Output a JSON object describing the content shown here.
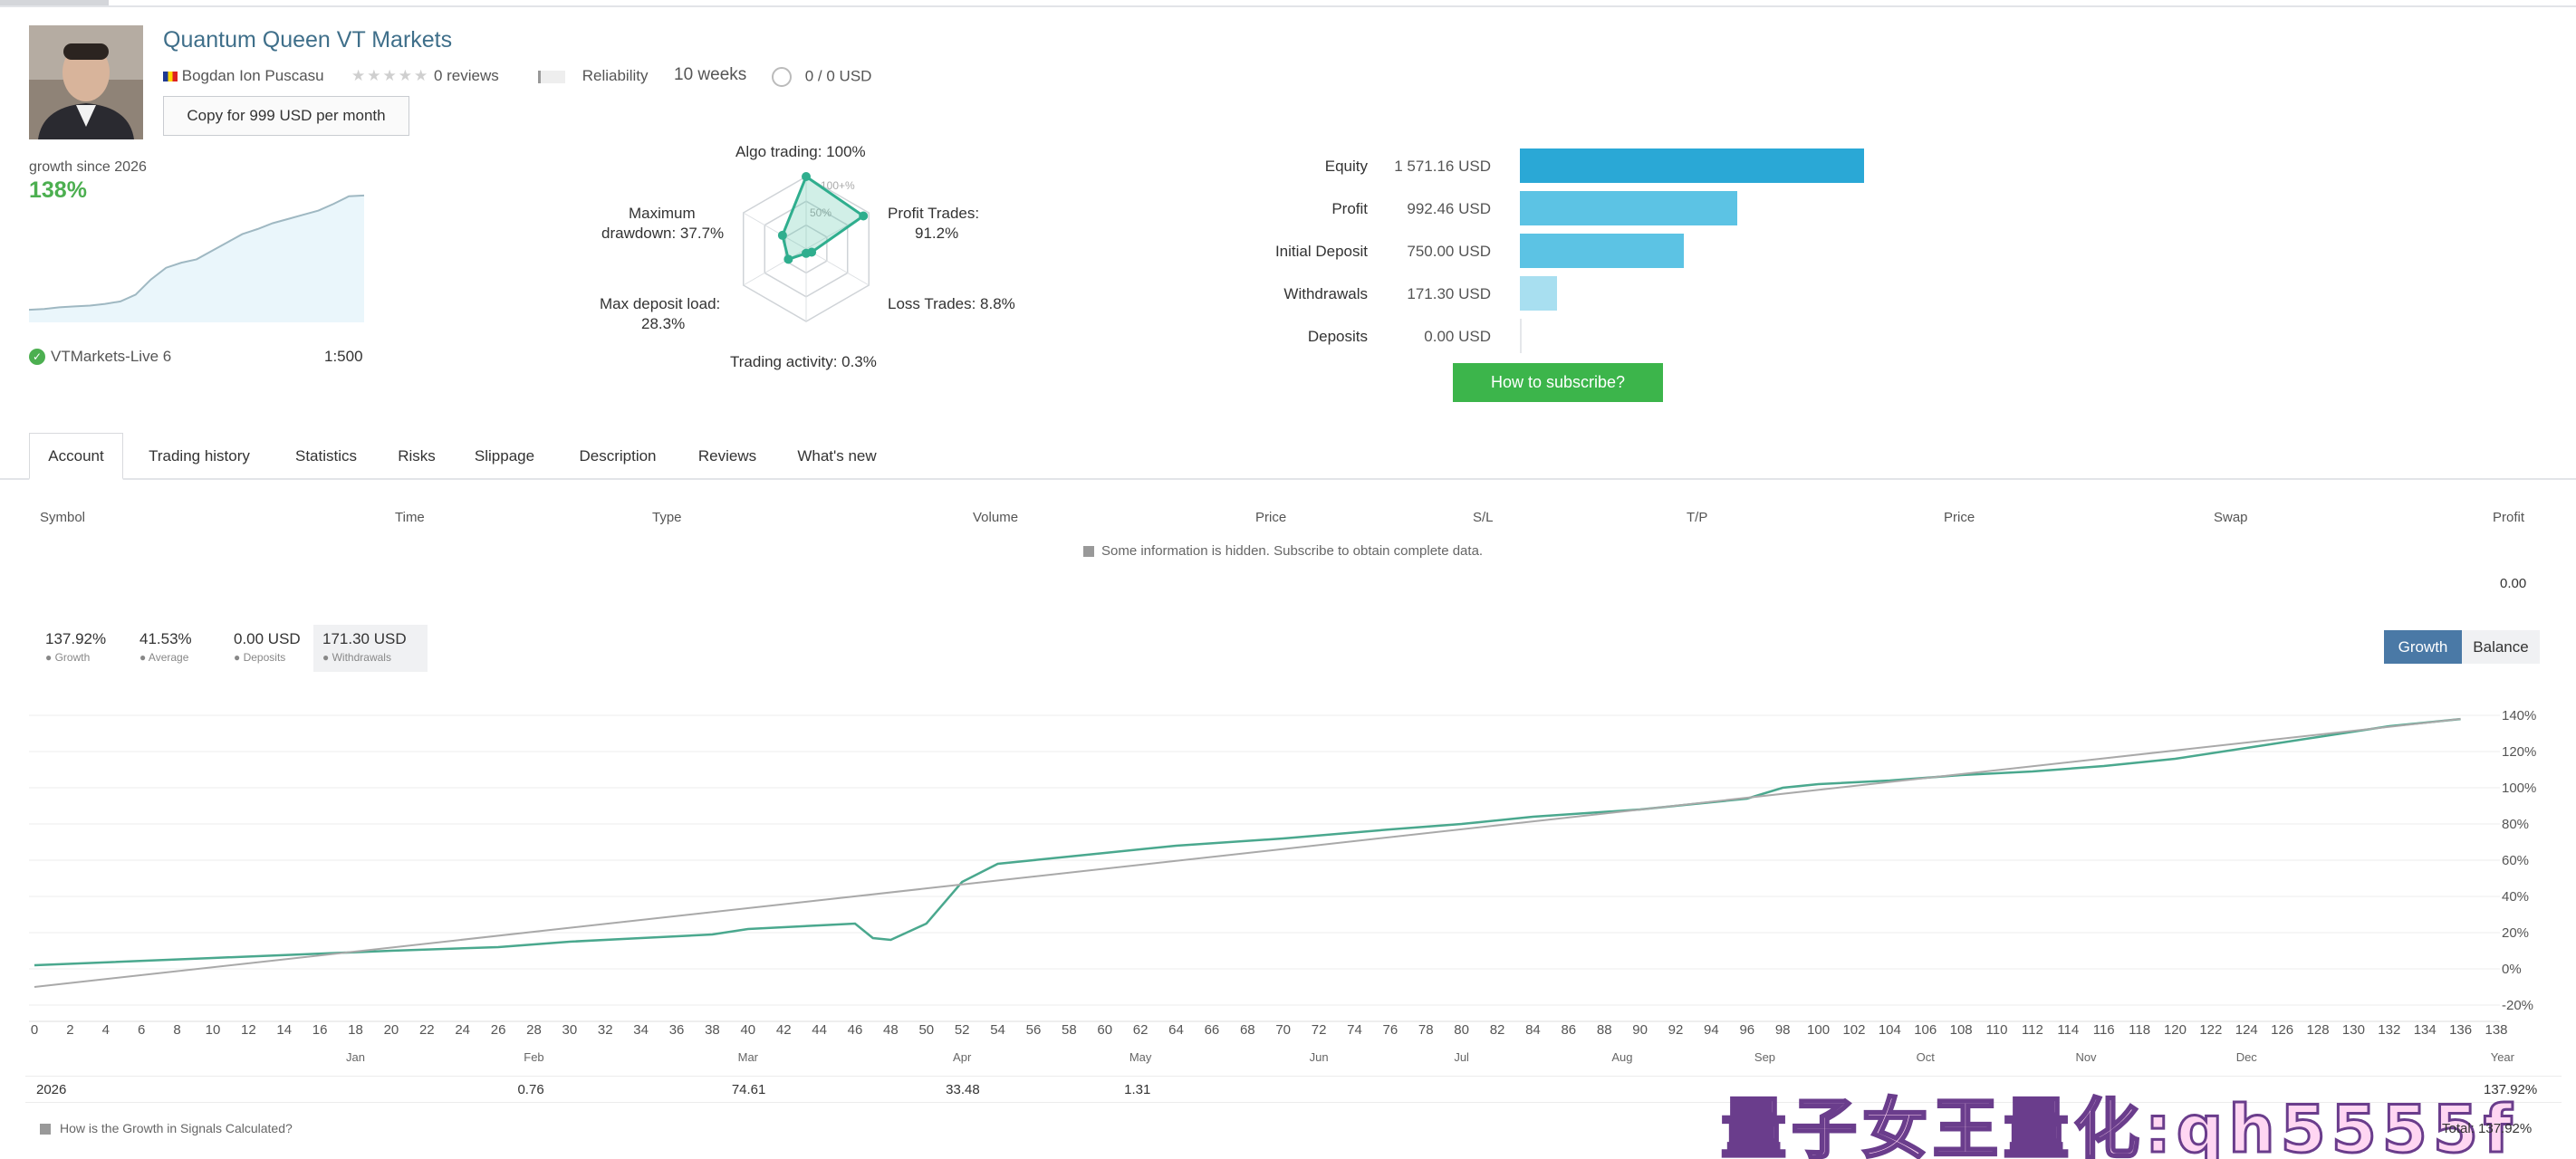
{
  "signal": {
    "title": "Quantum Queen VT Markets",
    "author": "Bogdan Ion Puscasu",
    "stars": "★★★★★",
    "reviews": "0 reviews",
    "reliability": "Reliability",
    "weeks": "10 weeks",
    "subscribers": "0 / 0 USD",
    "copy_button": "Copy for 999 USD per month"
  },
  "mini_growth": {
    "label": "growth since 2026",
    "value": "138%",
    "broker": "VTMarkets-Live 6",
    "leverage": "1:500",
    "points": [
      2,
      3,
      5,
      6,
      7,
      9,
      12,
      20,
      38,
      52,
      58,
      62,
      72,
      82,
      92,
      98,
      105,
      110,
      115,
      120,
      128,
      137,
      138
    ]
  },
  "radar": {
    "labels": {
      "algo": "Algo trading: 100%",
      "profit": "Profit Trades:",
      "profit_val": "91.2%",
      "loss": "Loss Trades: 8.8%",
      "activity": "Trading activity: 0.3%",
      "deposit_load": "Max deposit load:",
      "deposit_load_val": "28.3%",
      "drawdown": "Maximum",
      "drawdown_val": "drawdown: 37.7%",
      "inner_100": "100+%",
      "inner_50": "50%"
    },
    "values": {
      "algo": 100,
      "profit": 91.2,
      "loss": 8.8,
      "activity": 0.3,
      "deposit_load": 28.3,
      "drawdown": 37.7
    }
  },
  "summary_bars": [
    {
      "label": "Equity",
      "value": "1 571.16 USD",
      "amount": 1571.16,
      "color": "#2aa8d6"
    },
    {
      "label": "Profit",
      "value": "992.46 USD",
      "amount": 992.46,
      "color": "#5cc3e4"
    },
    {
      "label": "Initial Deposit",
      "value": "750.00 USD",
      "amount": 750.0,
      "color": "#5cc3e4"
    },
    {
      "label": "Withdrawals",
      "value": "171.30 USD",
      "amount": 171.3,
      "color": "#a8dff0"
    },
    {
      "label": "Deposits",
      "value": "0.00 USD",
      "amount": 0.0,
      "color": "#a8dff0"
    }
  ],
  "subscribe_button": "How to subscribe?",
  "tabs": [
    "Account",
    "Trading history",
    "Statistics",
    "Risks",
    "Slippage",
    "Description",
    "Reviews",
    "What's new"
  ],
  "table": {
    "headers": [
      "Symbol",
      "Time",
      "Type",
      "Volume",
      "Price",
      "S/L",
      "T/P",
      "Price",
      "Swap",
      "Profit"
    ],
    "hidden_notice": "Some information is hidden. Subscribe to obtain complete data.",
    "total_profit": "0.00"
  },
  "stats": [
    {
      "value": "137.92%",
      "label": "Growth"
    },
    {
      "value": "41.53%",
      "label": "Average"
    },
    {
      "value": "0.00 USD",
      "label": "Deposits"
    },
    {
      "value": "171.30 USD",
      "label": "Withdrawals"
    }
  ],
  "chart_toggle": {
    "growth": "Growth",
    "balance": "Balance"
  },
  "chart_data": {
    "type": "line",
    "title": "",
    "xlabel": "",
    "ylabel": "",
    "ylim": [
      -20,
      140
    ],
    "y_ticks": [
      "140%",
      "120%",
      "100%",
      "80%",
      "60%",
      "40%",
      "20%",
      "0%",
      "-20%"
    ],
    "x_ticks": [
      "0",
      "2",
      "4",
      "6",
      "8",
      "10",
      "12",
      "14",
      "16",
      "18",
      "20",
      "22",
      "24",
      "26",
      "28",
      "30",
      "32",
      "34",
      "36",
      "38",
      "40",
      "42",
      "44",
      "46",
      "48",
      "50",
      "52",
      "54",
      "56",
      "58",
      "60",
      "62",
      "64",
      "66",
      "68",
      "70",
      "72",
      "74",
      "76",
      "78",
      "80",
      "82",
      "84",
      "86",
      "88",
      "90",
      "92",
      "94",
      "96",
      "98",
      "100",
      "102",
      "104",
      "106",
      "108",
      "110",
      "112",
      "114",
      "116",
      "118",
      "120",
      "122",
      "124",
      "126",
      "128",
      "130",
      "132",
      "134",
      "136",
      "138"
    ],
    "x_label_end": "Year",
    "months": [
      {
        "label": "Jan",
        "x": 18
      },
      {
        "label": "Feb",
        "x": 28
      },
      {
        "label": "Mar",
        "x": 40
      },
      {
        "label": "Apr",
        "x": 52
      },
      {
        "label": "May",
        "x": 62
      },
      {
        "label": "Jun",
        "x": 72
      },
      {
        "label": "Jul",
        "x": 80
      },
      {
        "label": "Aug",
        "x": 89
      },
      {
        "label": "Sep",
        "x": 97
      },
      {
        "label": "Oct",
        "x": 106
      },
      {
        "label": "Nov",
        "x": 115
      },
      {
        "label": "Dec",
        "x": 124
      }
    ],
    "x_range": [
      0,
      138
    ],
    "series": [
      {
        "x": [
          0,
          10,
          20,
          26,
          30,
          34,
          38,
          40,
          44,
          46,
          47,
          48,
          50,
          52,
          54,
          56,
          60,
          64,
          70,
          76,
          80,
          84,
          90,
          96,
          98,
          100,
          104,
          108,
          112,
          116,
          120,
          124,
          128,
          132,
          136
        ],
        "values": [
          2,
          6,
          10,
          12,
          15,
          17,
          19,
          22,
          24,
          25,
          17,
          16,
          25,
          48,
          58,
          60,
          64,
          68,
          72,
          77,
          80,
          84,
          88,
          94,
          100,
          102,
          104,
          107,
          109,
          112,
          116,
          122,
          128,
          134,
          137.92
        ]
      },
      {
        "x": [
          0,
          136
        ],
        "values": [
          -10,
          138
        ]
      }
    ]
  },
  "year_row": {
    "year": "2026",
    "values": [
      {
        "text": "0.76",
        "x": 28
      },
      {
        "text": "74.61",
        "x": 40
      },
      {
        "text": "33.48",
        "x": 52
      },
      {
        "text": "1.31",
        "x": 62
      }
    ],
    "total_cell": "137.92%"
  },
  "footer": {
    "link": "How is the Growth in Signals Calculated?",
    "total": "Total: 137.92%"
  },
  "watermark": "量子女王量化:qh5555f"
}
